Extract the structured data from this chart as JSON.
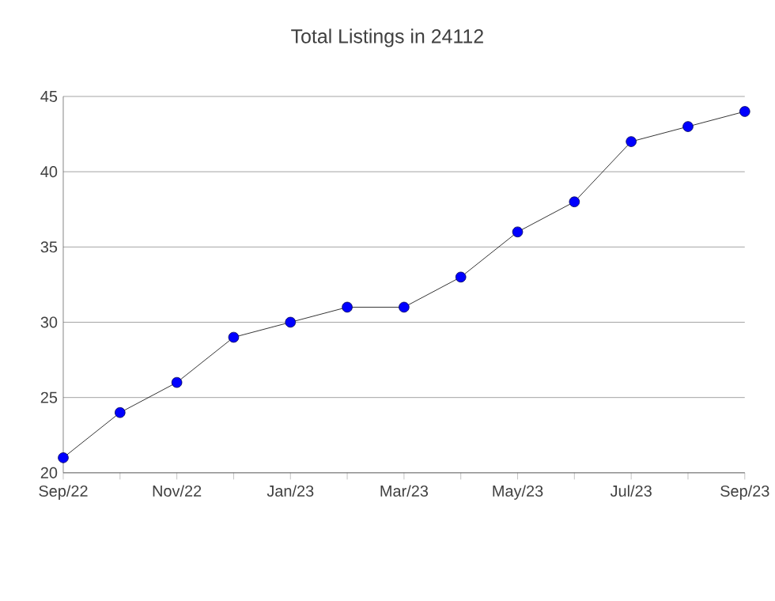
{
  "chart_data": {
    "type": "line",
    "title": "Total Listings in 24112",
    "categories": [
      "Sep/22",
      null,
      "Nov/22",
      null,
      "Jan/23",
      null,
      "Mar/23",
      null,
      "May/23",
      null,
      "Jul/23",
      null,
      "Sep/23"
    ],
    "series": [
      {
        "color": "#0000ff",
        "values": [
          21,
          24,
          26,
          29,
          30,
          31,
          31,
          33,
          36,
          38,
          42,
          43,
          44
        ]
      }
    ],
    "ylim": [
      20,
      45
    ],
    "yticks": [
      20,
      25,
      30,
      35,
      40,
      45
    ],
    "grid": "y",
    "marker": "circle",
    "line_style": "solid"
  }
}
